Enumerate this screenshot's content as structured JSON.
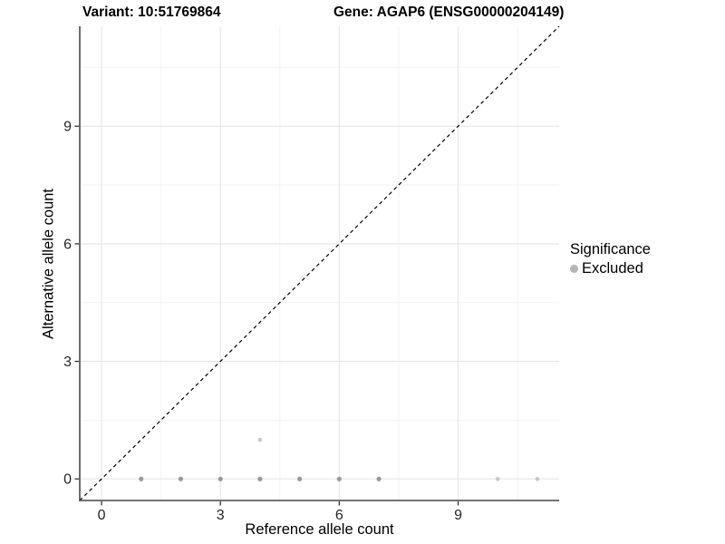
{
  "titles": {
    "left": "Variant: 10:51769864",
    "right": "Gene: AGAP6 (ENSG00000204149)"
  },
  "chart_data": {
    "type": "scatter",
    "xlabel": "Reference allele count",
    "ylabel": "Alternative allele count",
    "xlim": [
      -0.55,
      11.55
    ],
    "ylim": [
      -0.55,
      11.55
    ],
    "xticks": [
      0,
      3,
      6,
      9
    ],
    "yticks": [
      0,
      3,
      6,
      9
    ],
    "minor_gridlines": [
      1.5,
      4.5,
      7.5,
      10.5
    ],
    "grid": true,
    "series_name": "Excluded",
    "points": [
      {
        "x": 1,
        "y": 0,
        "shade": "dark"
      },
      {
        "x": 2,
        "y": 0,
        "shade": "dark"
      },
      {
        "x": 3,
        "y": 0,
        "shade": "dark"
      },
      {
        "x": 4,
        "y": 0,
        "shade": "dark"
      },
      {
        "x": 5,
        "y": 0,
        "shade": "dark"
      },
      {
        "x": 6,
        "y": 0,
        "shade": "dark"
      },
      {
        "x": 7,
        "y": 0,
        "shade": "dark"
      },
      {
        "x": 10,
        "y": 0,
        "shade": "light"
      },
      {
        "x": 11,
        "y": 0,
        "shade": "light"
      },
      {
        "x": 4,
        "y": 1,
        "shade": "light"
      }
    ],
    "identity_line": {
      "style": "dashed",
      "from": [
        -0.55,
        -0.55
      ],
      "to": [
        11.55,
        11.55
      ],
      "color": "#000000"
    },
    "colors": {
      "point_dark": "#9a9a9a",
      "point_light": "#c9c9c9",
      "grid_major": "#e6e6e6",
      "grid_minor": "#f2f2f2",
      "axis_line": "#474747",
      "tick_mark": "#333333",
      "tick_label": "#262626"
    }
  },
  "legend": {
    "title": "Significance",
    "items": [
      {
        "label": "Excluded",
        "color": "#b5b5b5"
      }
    ]
  }
}
